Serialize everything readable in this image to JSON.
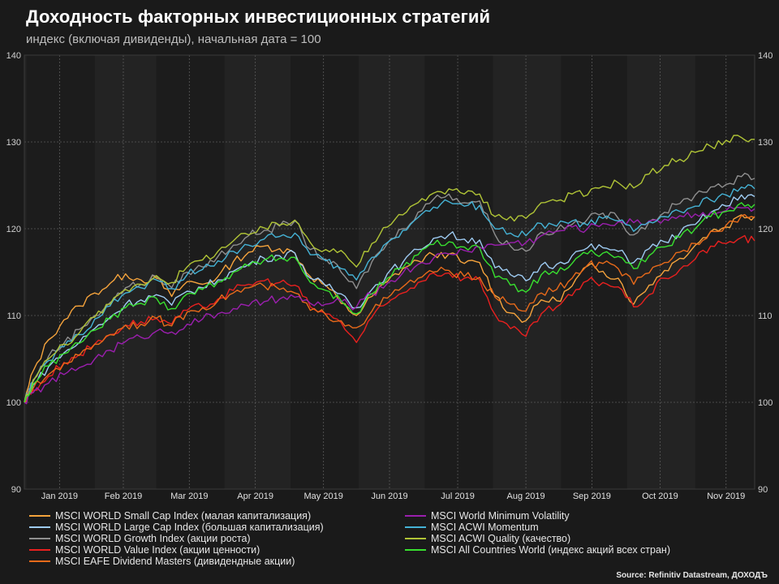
{
  "header": {
    "title": "Доходность факторных инвестиционных стратегий",
    "subtitle": "индекс (включая дивиденды), начальная дата = 100"
  },
  "source": "Source: Refinitiv Datastream, ДОХОДЪ",
  "colors": {
    "background": "#1a1a1a",
    "plot_bg": "#232323",
    "shade": "#1c1c1c",
    "grid": "#5a5a5a"
  },
  "chart_data": {
    "type": "line",
    "title": "Доходность факторных инвестиционных стратегий",
    "subtitle": "индекс (включая дивиденды), начальная дата = 100",
    "xlabel": "",
    "ylabel": "",
    "ylim": [
      90,
      140
    ],
    "yticks": [
      90,
      100,
      110,
      120,
      130,
      140
    ],
    "y_axis_both_sides": true,
    "grid": true,
    "legend_position": "bottom",
    "xlim": [
      "2018-12-31",
      "2019-11-28"
    ],
    "month_ticks": [
      {
        "label": "Jan 2019",
        "date": "2019-01-16"
      },
      {
        "label": "Feb 2019",
        "date": "2019-02-14"
      },
      {
        "label": "Mar 2019",
        "date": "2019-03-16"
      },
      {
        "label": "Apr 2019",
        "date": "2019-04-15"
      },
      {
        "label": "May 2019",
        "date": "2019-05-16"
      },
      {
        "label": "Jun 2019",
        "date": "2019-06-15"
      },
      {
        "label": "Jul 2019",
        "date": "2019-07-16"
      },
      {
        "label": "Aug 2019",
        "date": "2019-08-16"
      },
      {
        "label": "Sep 2019",
        "date": "2019-09-15"
      },
      {
        "label": "Oct 2019",
        "date": "2019-10-16"
      },
      {
        "label": "Nov 2019",
        "date": "2019-11-15"
      }
    ],
    "shaded_months": [
      [
        "2019-01-01",
        "2019-02-01"
      ],
      [
        "2019-03-01",
        "2019-04-01"
      ],
      [
        "2019-05-01",
        "2019-06-01"
      ],
      [
        "2019-07-01",
        "2019-08-01"
      ],
      [
        "2019-09-01",
        "2019-10-01"
      ],
      [
        "2019-11-01",
        "2019-11-28"
      ]
    ],
    "x": [
      "2018-12-31",
      "2019-01-04",
      "2019-01-11",
      "2019-01-18",
      "2019-01-25",
      "2019-02-01",
      "2019-02-08",
      "2019-02-15",
      "2019-02-22",
      "2019-03-01",
      "2019-03-08",
      "2019-03-15",
      "2019-03-22",
      "2019-03-29",
      "2019-04-05",
      "2019-04-12",
      "2019-04-19",
      "2019-04-26",
      "2019-05-03",
      "2019-05-10",
      "2019-05-17",
      "2019-05-24",
      "2019-05-31",
      "2019-06-07",
      "2019-06-14",
      "2019-06-21",
      "2019-06-28",
      "2019-07-05",
      "2019-07-12",
      "2019-07-19",
      "2019-07-26",
      "2019-08-02",
      "2019-08-09",
      "2019-08-16",
      "2019-08-23",
      "2019-08-30",
      "2019-09-06",
      "2019-09-13",
      "2019-09-20",
      "2019-09-27",
      "2019-10-04",
      "2019-10-11",
      "2019-10-18",
      "2019-10-25",
      "2019-11-01",
      "2019-11-08",
      "2019-11-15",
      "2019-11-22",
      "2019-11-28"
    ],
    "series": [
      {
        "name": "MSCI WORLD Small Cap Index (малая капитализация)",
        "color": "#f5a33c",
        "values": [
          100,
          103.6,
          107.2,
          109.5,
          111.1,
          112.6,
          113.7,
          114.8,
          114.1,
          114.3,
          112.2,
          113.9,
          113.6,
          114.5,
          116.2,
          117.3,
          118.0,
          117.7,
          117.2,
          114.5,
          113.5,
          111.4,
          110.0,
          112.2,
          113.9,
          115.4,
          116.3,
          117.0,
          117.1,
          116.0,
          116.1,
          112.3,
          110.3,
          109.4,
          111.8,
          111.7,
          113.4,
          115.7,
          115.1,
          114.3,
          111.3,
          113.5,
          115.2,
          116.6,
          118.1,
          119.7,
          120.2,
          121.6,
          121.4
        ]
      },
      {
        "name": "MSCI WORLD Large Cap Index (большая капитализация)",
        "color": "#9ecbf2",
        "values": [
          100,
          102.0,
          104.1,
          105.7,
          106.9,
          108.5,
          109.8,
          111.3,
          111.8,
          112.4,
          111.2,
          112.8,
          113.2,
          114.1,
          115.1,
          115.9,
          116.6,
          116.9,
          117.2,
          114.3,
          113.4,
          112.5,
          110.9,
          113.0,
          114.8,
          116.1,
          117.6,
          118.9,
          119.3,
          118.8,
          118.7,
          115.5,
          114.7,
          114.0,
          115.8,
          115.9,
          116.9,
          117.8,
          117.8,
          117.4,
          116.1,
          117.7,
          118.5,
          119.5,
          120.5,
          121.9,
          122.6,
          123.9,
          123.7
        ]
      },
      {
        "name": "MSCI WORLD Growth Index (акции роста)",
        "color": "#8f8f8f",
        "values": [
          100,
          102.6,
          105.3,
          106.8,
          108.4,
          110.0,
          111.5,
          113.2,
          113.6,
          114.5,
          113.2,
          115.0,
          115.6,
          116.8,
          118.1,
          119.2,
          119.8,
          120.3,
          120.9,
          117.6,
          116.5,
          115.0,
          113.1,
          116.2,
          118.3,
          120.0,
          121.9,
          123.4,
          124.0,
          123.0,
          123.2,
          119.3,
          118.0,
          117.4,
          119.6,
          119.8,
          120.5,
          121.1,
          121.8,
          121.2,
          119.3,
          120.8,
          121.9,
          122.9,
          123.9,
          124.8,
          125.1,
          126.0,
          125.8
        ]
      },
      {
        "name": "MSCI WORLD Value Index (акции ценности)",
        "color": "#e8201f",
        "values": [
          100,
          101.4,
          103.0,
          104.6,
          105.5,
          106.7,
          107.8,
          108.9,
          109.3,
          109.7,
          109.0,
          110.6,
          111.0,
          111.9,
          112.9,
          113.6,
          114.0,
          113.8,
          113.5,
          111.0,
          110.2,
          109.2,
          106.9,
          109.8,
          111.4,
          112.6,
          113.8,
          114.9,
          114.9,
          114.3,
          114.1,
          110.1,
          108.5,
          107.6,
          110.2,
          111.0,
          112.3,
          114.0,
          113.8,
          113.3,
          111.0,
          112.4,
          114.3,
          115.3,
          116.5,
          118.0,
          118.3,
          119.0,
          118.6
        ]
      },
      {
        "name": "MSCI EAFE Dividend Masters (дивидендные акции)",
        "color": "#e86a1a",
        "values": [
          100,
          101.6,
          103.2,
          104.5,
          105.4,
          106.7,
          107.8,
          108.9,
          109.0,
          109.7,
          108.8,
          110.4,
          110.9,
          111.7,
          112.6,
          113.2,
          113.4,
          113.0,
          112.6,
          110.6,
          110.1,
          109.4,
          108.6,
          110.5,
          112.0,
          113.3,
          114.3,
          115.0,
          115.2,
          114.5,
          114.4,
          112.1,
          111.3,
          110.5,
          112.6,
          113.0,
          114.3,
          115.8,
          116.0,
          115.4,
          113.6,
          114.9,
          116.1,
          117.3,
          118.3,
          119.7,
          120.4,
          121.5,
          121.3
        ]
      },
      {
        "name": "MSCI World Minimum Volatility",
        "color": "#9b1fae",
        "values": [
          100,
          101.1,
          102.2,
          103.2,
          104.0,
          105.0,
          106.0,
          107.0,
          107.5,
          108.2,
          108.1,
          109.0,
          109.6,
          110.2,
          110.8,
          111.1,
          111.6,
          111.9,
          112.1,
          111.4,
          111.3,
          111.6,
          111.0,
          112.5,
          113.7,
          114.9,
          115.9,
          116.6,
          117.1,
          117.5,
          117.9,
          118.1,
          118.4,
          118.4,
          119.2,
          119.7,
          120.2,
          120.0,
          120.6,
          120.8,
          120.7,
          120.9,
          121.1,
          121.5,
          121.7,
          121.9,
          122.1,
          122.4,
          122.3
        ]
      },
      {
        "name": "MSCI ACWI Momentum",
        "color": "#45b3d6",
        "values": [
          100,
          102.4,
          104.8,
          106.4,
          107.8,
          109.6,
          111.1,
          112.6,
          113.2,
          114.1,
          113.1,
          114.7,
          115.3,
          116.3,
          117.4,
          118.1,
          118.8,
          119.1,
          119.5,
          117.0,
          116.3,
          115.4,
          114.1,
          116.7,
          118.4,
          119.8,
          121.3,
          122.5,
          123.1,
          122.6,
          122.7,
          120.0,
          119.5,
          119.2,
          120.6,
          120.3,
          120.9,
          120.4,
          121.2,
          120.9,
          119.7,
          120.8,
          121.4,
          122.0,
          122.6,
          123.3,
          123.9,
          124.8,
          124.6
        ]
      },
      {
        "name": "MSCI ACWI Quality (качество)",
        "color": "#b0c436",
        "values": [
          100,
          102.5,
          105.0,
          106.7,
          108.0,
          109.8,
          111.3,
          113.0,
          113.6,
          114.6,
          113.8,
          115.6,
          116.4,
          117.4,
          118.6,
          119.3,
          120.1,
          120.4,
          121.0,
          118.4,
          117.6,
          117.5,
          115.6,
          118.3,
          120.2,
          121.6,
          123.0,
          124.1,
          124.6,
          124.0,
          124.0,
          121.4,
          121.4,
          121.2,
          123.0,
          123.2,
          124.0,
          123.9,
          124.9,
          125.3,
          124.7,
          126.3,
          127.3,
          128.0,
          128.8,
          129.5,
          130.2,
          130.5,
          130.3
        ]
      },
      {
        "name": "MSCI All Countries World (индекс акций всех стран)",
        "color": "#38e02f",
        "values": [
          100,
          102.1,
          104.2,
          105.6,
          106.8,
          108.3,
          109.6,
          110.9,
          111.4,
          112.0,
          110.8,
          112.5,
          113.0,
          113.9,
          115.0,
          115.7,
          116.4,
          116.6,
          116.7,
          113.8,
          112.9,
          111.7,
          110.2,
          112.5,
          114.3,
          115.5,
          117.0,
          118.2,
          118.5,
          117.9,
          117.8,
          114.4,
          113.5,
          112.7,
          114.7,
          114.8,
          116.0,
          117.1,
          117.2,
          116.8,
          115.4,
          116.9,
          117.9,
          119.0,
          120.0,
          121.4,
          122.0,
          123.0,
          122.8
        ]
      }
    ]
  }
}
